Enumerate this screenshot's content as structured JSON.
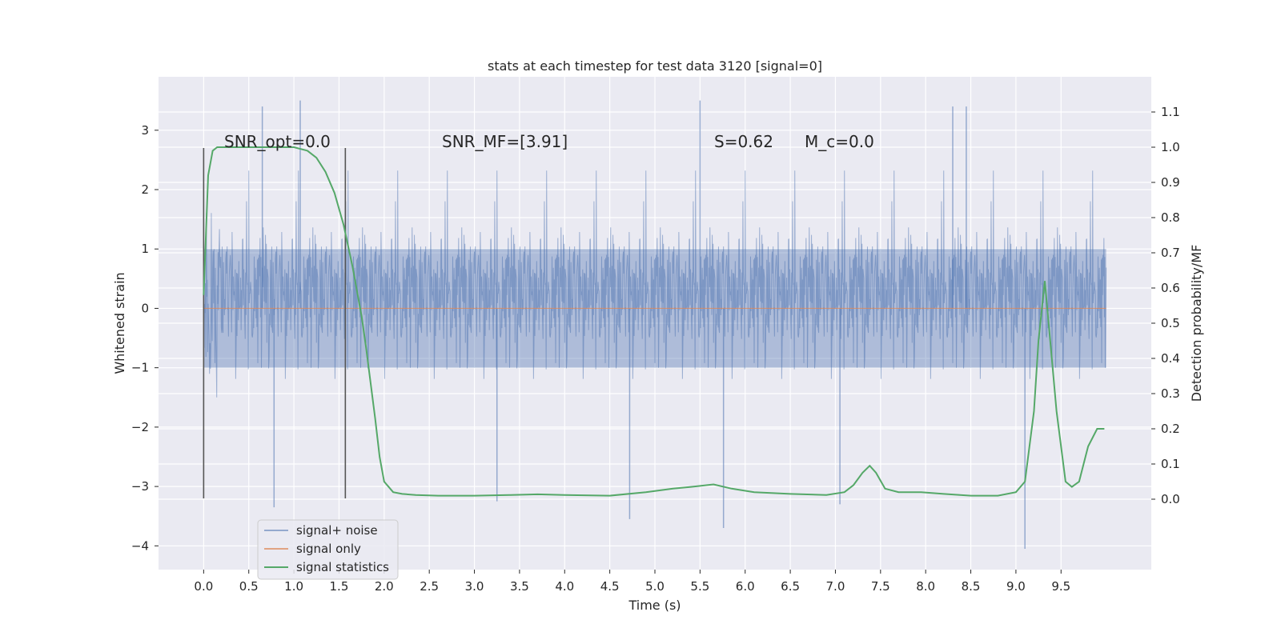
{
  "chart_data": {
    "type": "line",
    "title": "stats at each timestep for test data 3120 [signal=0]",
    "xlabel": "Time (s)",
    "ylabel": "Whitened strain",
    "y2label": "Detection probability/MF",
    "xlim": [
      -0.5,
      10.5
    ],
    "ylim": [
      -4.4,
      3.9
    ],
    "y2lim": [
      -0.2,
      1.2
    ],
    "xticks": [
      0.0,
      0.5,
      1.0,
      1.5,
      2.0,
      2.5,
      3.0,
      3.5,
      4.0,
      4.5,
      5.0,
      5.5,
      6.0,
      6.5,
      7.0,
      7.5,
      8.0,
      8.5,
      9.0,
      9.5
    ],
    "yticks": [
      -4,
      -3,
      -2,
      -1,
      0,
      1,
      2,
      3
    ],
    "y2ticks": [
      0.0,
      0.1,
      0.2,
      0.3,
      0.4,
      0.5,
      0.6,
      0.7,
      0.8,
      0.9,
      1.0,
      1.1
    ],
    "grid": true,
    "legend_position": "lower-left",
    "annotations": [
      {
        "text": "SNR_opt=0.0",
        "x": 0.2,
        "y2": 1.0
      },
      {
        "text": "SNR_MF=[3.91]",
        "x": 2.6,
        "y2": 1.0
      },
      {
        "text": "S=0.62",
        "x": 5.6,
        "y2": 1.0
      },
      {
        "text": "M_c=0.0",
        "x": 6.6,
        "y2": 1.0
      }
    ],
    "vlines": [
      {
        "x": 0.0,
        "y_from": -3.2,
        "y_to": 2.7
      },
      {
        "x": 1.57,
        "y_from": -3.2,
        "y_to": 2.7
      }
    ],
    "noise_spikes": [
      {
        "x": 0.65,
        "y": 3.4
      },
      {
        "x": 1.07,
        "y": 3.5
      },
      {
        "x": 5.5,
        "y": 3.5
      },
      {
        "x": 8.3,
        "y": 3.4
      },
      {
        "x": 8.45,
        "y": 3.4
      },
      {
        "x": 0.78,
        "y": -3.35
      },
      {
        "x": 4.72,
        "y": -3.55
      },
      {
        "x": 5.76,
        "y": -3.7
      },
      {
        "x": 9.1,
        "y": -4.05
      },
      {
        "x": 7.05,
        "y": -3.3
      },
      {
        "x": 3.25,
        "y": -3.25
      }
    ],
    "series": [
      {
        "name": "signal+ noise",
        "color": "#4c72b0",
        "x_range": [
          0.0,
          10.0
        ],
        "envelope_upper": 2.4,
        "envelope_lower": -2.4
      },
      {
        "name": "signal only",
        "color": "#dd8452",
        "x": [
          0.0,
          10.0
        ],
        "y": [
          0.0,
          0.0
        ]
      },
      {
        "name": "signal statistics",
        "color": "#55a868",
        "axis": "right",
        "x": [
          0.0,
          0.05,
          0.1,
          0.15,
          0.25,
          0.5,
          0.75,
          1.0,
          1.15,
          1.25,
          1.35,
          1.45,
          1.55,
          1.65,
          1.75,
          1.8,
          1.85,
          1.9,
          1.95,
          2.0,
          2.1,
          2.2,
          2.35,
          2.6,
          3.0,
          3.4,
          3.7,
          4.0,
          4.5,
          4.9,
          5.2,
          5.4,
          5.65,
          5.85,
          6.1,
          6.5,
          6.9,
          7.1,
          7.2,
          7.3,
          7.38,
          7.45,
          7.55,
          7.7,
          7.95,
          8.2,
          8.5,
          8.8,
          9.0,
          9.1,
          9.2,
          9.25,
          9.32,
          9.38,
          9.45,
          9.55,
          9.62,
          9.7,
          9.75,
          9.8,
          9.9,
          9.98
        ],
        "y": [
          0.58,
          0.92,
          0.99,
          1.0,
          1.0,
          1.0,
          1.0,
          1.0,
          0.99,
          0.97,
          0.93,
          0.87,
          0.78,
          0.66,
          0.52,
          0.43,
          0.33,
          0.23,
          0.12,
          0.05,
          0.02,
          0.015,
          0.012,
          0.01,
          0.01,
          0.012,
          0.014,
          0.012,
          0.01,
          0.02,
          0.03,
          0.035,
          0.042,
          0.03,
          0.02,
          0.015,
          0.012,
          0.02,
          0.04,
          0.075,
          0.095,
          0.075,
          0.03,
          0.02,
          0.02,
          0.015,
          0.01,
          0.01,
          0.02,
          0.05,
          0.25,
          0.45,
          0.62,
          0.45,
          0.25,
          0.05,
          0.035,
          0.05,
          0.1,
          0.15,
          0.2,
          0.2
        ]
      }
    ]
  }
}
